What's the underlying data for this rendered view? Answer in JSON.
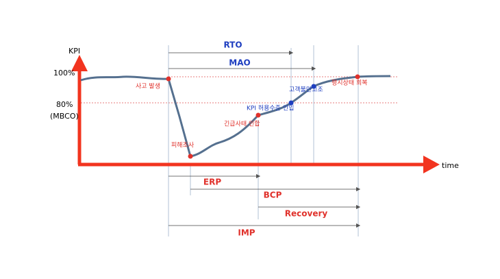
{
  "axes": {
    "y_label": "KPI",
    "x_label": "time",
    "level_100": "100%",
    "level_80": "80%",
    "level_80_note": "(MBCO)"
  },
  "events": [
    {
      "label": "사고 발생"
    },
    {
      "label": "피해조사"
    },
    {
      "label": "긴급사태 인합"
    },
    {
      "label": "KPI 허용수준 인입"
    },
    {
      "label": "고객불만고조"
    },
    {
      "label": "평시상태 회복"
    }
  ],
  "spans": [
    {
      "label": "RTO"
    },
    {
      "label": "MAO"
    },
    {
      "label": "ERP"
    },
    {
      "label": "BCP"
    },
    {
      "label": "Recovery"
    },
    {
      "label": "IMP"
    }
  ]
}
